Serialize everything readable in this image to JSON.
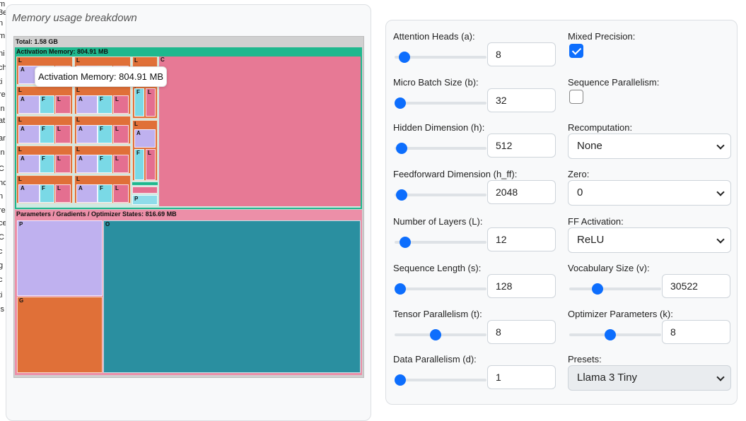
{
  "left_fragments": [
    "m",
    "3e",
    "n",
    "m",
    "ni",
    "ch",
    "ti",
    "re",
    "in",
    "at",
    "ar",
    "in",
    "C",
    "nc",
    "n",
    "re",
    "ce",
    "C",
    "c",
    "g",
    "c",
    "ti",
    "is"
  ],
  "viz": {
    "title": "Memory usage breakdown",
    "total_label": "Total: 1.58 GB",
    "activation_header": "Activation Memory: 804.91 MB",
    "params_header": "Parameters / Gradients / Optimizer States: 816.69 MB",
    "tooltip": "Activation Memory: 804.91 MB",
    "layer_label": "L",
    "a_label": "A",
    "f_label": "F",
    "l_label": "L",
    "p_label": "P",
    "g_label": "G",
    "o_label": "O",
    "pink_label": "C"
  },
  "controls": {
    "attention_heads": {
      "label": "Attention Heads (a):",
      "value": "8",
      "fraction": 0.05
    },
    "micro_batch": {
      "label": "Micro Batch Size (b):",
      "value": "32",
      "fraction": 0.0
    },
    "hidden_dim": {
      "label": "Hidden Dimension (h):",
      "value": "512",
      "fraction": 0.02
    },
    "ff_dim": {
      "label": "Feedforward Dimension (h_ff):",
      "value": "2048",
      "fraction": 0.02
    },
    "num_layers": {
      "label": "Number of Layers (L):",
      "value": "12",
      "fraction": 0.06
    },
    "seq_len": {
      "label": "Sequence Length (s):",
      "value": "128",
      "fraction": 0.0
    },
    "tensor_par": {
      "label": "Tensor Parallelism (t):",
      "value": "8",
      "fraction": 0.44
    },
    "data_par": {
      "label": "Data Parallelism (d):",
      "value": "1",
      "fraction": 0.0
    },
    "mixed_precision": {
      "label": "Mixed Precision:",
      "checked": true
    },
    "seq_parallelism": {
      "label": "Sequence Parallelism:",
      "checked": false
    },
    "recomputation": {
      "label": "Recomputation:",
      "value": "None"
    },
    "zero": {
      "label": "Zero:",
      "value": "0"
    },
    "ff_activation": {
      "label": "FF Activation:",
      "value": "ReLU"
    },
    "vocab_size": {
      "label": "Vocabulary Size (v):",
      "value": "30522",
      "fraction": 0.28
    },
    "optimizer_params": {
      "label": "Optimizer Parameters (k):",
      "value": "8",
      "fraction": 0.44
    },
    "presets": {
      "label": "Presets:",
      "value": "Llama 3 Tiny"
    }
  }
}
